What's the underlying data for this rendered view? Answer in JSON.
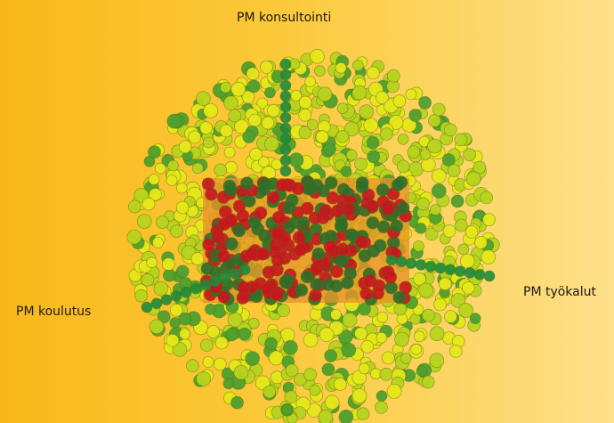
{
  "labels": {
    "top": "PM konsultointi",
    "left": "PM koulutus",
    "right": "PM työkalut"
  },
  "colors": {
    "background_start": "#f8b81a",
    "background_end": "#fde08a",
    "outer_yellow": "#e6e81a",
    "outer_lime": "#b8d41e",
    "outer_green": "#4fa02e",
    "axis_green": "#1f8a3c",
    "core_red": "#c8161e",
    "core_dark": "#2e6e2a"
  }
}
